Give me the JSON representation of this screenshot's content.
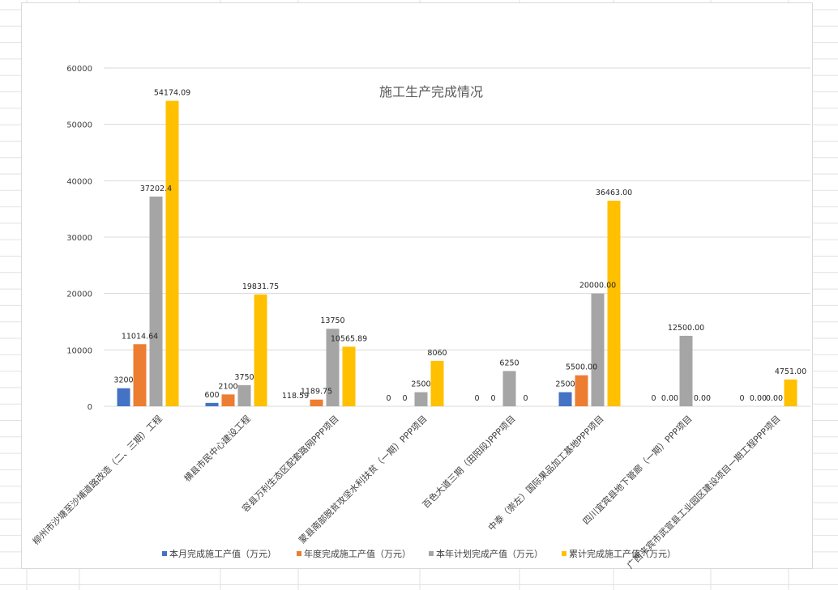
{
  "chart_data": {
    "type": "bar",
    "title": "施工生产完成情况",
    "xlabel": "",
    "ylabel": "",
    "ylim": [
      0,
      60000
    ],
    "yticks": [
      "0",
      "10000",
      "20000",
      "30000",
      "40000",
      "50000",
      "60000"
    ],
    "grid": true,
    "legend_position": "bottom",
    "categories": [
      "柳州市沙塘至沙埔道路改造（二、三期）工程",
      "横县市民中心建设工程",
      "容县万利生态区配套路网PPP项目",
      "蒙县南部脱贫攻坚水利扶贫（一期）PPP项目",
      "百色大道三期（田阳段)PPP项目",
      "中泰（崇左）国际果品加工基地PPP项目",
      "四川宜宾县地下管廊（一期）PPP项目",
      "广西来宾市武宣县工业园区建设项目一期工程PPP项目"
    ],
    "series": [
      {
        "name": "本月完成施工产值（万元）",
        "color": "#4472c4",
        "values": [
          3200,
          600,
          0,
          0,
          0,
          2500,
          0,
          0
        ],
        "labels": [
          "3200",
          "600",
          "",
          "0",
          "0",
          "2500",
          "0",
          "0"
        ]
      },
      {
        "name": "年度完成施工产值（万元）",
        "color": "#ed7d31",
        "values": [
          11014.64,
          2100,
          1189.75,
          0,
          0,
          5500,
          0,
          0
        ],
        "labels": [
          "11014.64",
          "2100",
          "1189.75",
          "0",
          "0",
          "5500.00",
          "0.00",
          "0.00"
        ]
      },
      {
        "name": "本年计划完成产值（万元）",
        "color": "#a5a5a5",
        "values": [
          37202.4,
          3750,
          13750,
          2500,
          6250,
          20000,
          12500,
          0
        ],
        "labels": [
          "37202.4",
          "3750",
          "13750",
          "2500",
          "6250",
          "20000.00",
          "12500.00",
          "0.00"
        ]
      },
      {
        "name": "累计完成施工产值（万元）",
        "color": "#ffc000",
        "values": [
          54174.09,
          19831.75,
          10565.89,
          8060,
          0,
          36463,
          0,
          4751
        ],
        "labels": [
          "54174.09",
          "19831.75",
          "10565.89",
          "8060",
          "0",
          "36463.00",
          "0.00",
          "4751.00"
        ]
      }
    ],
    "extra_labels": [
      {
        "category": 2,
        "text": "118.59"
      }
    ]
  }
}
